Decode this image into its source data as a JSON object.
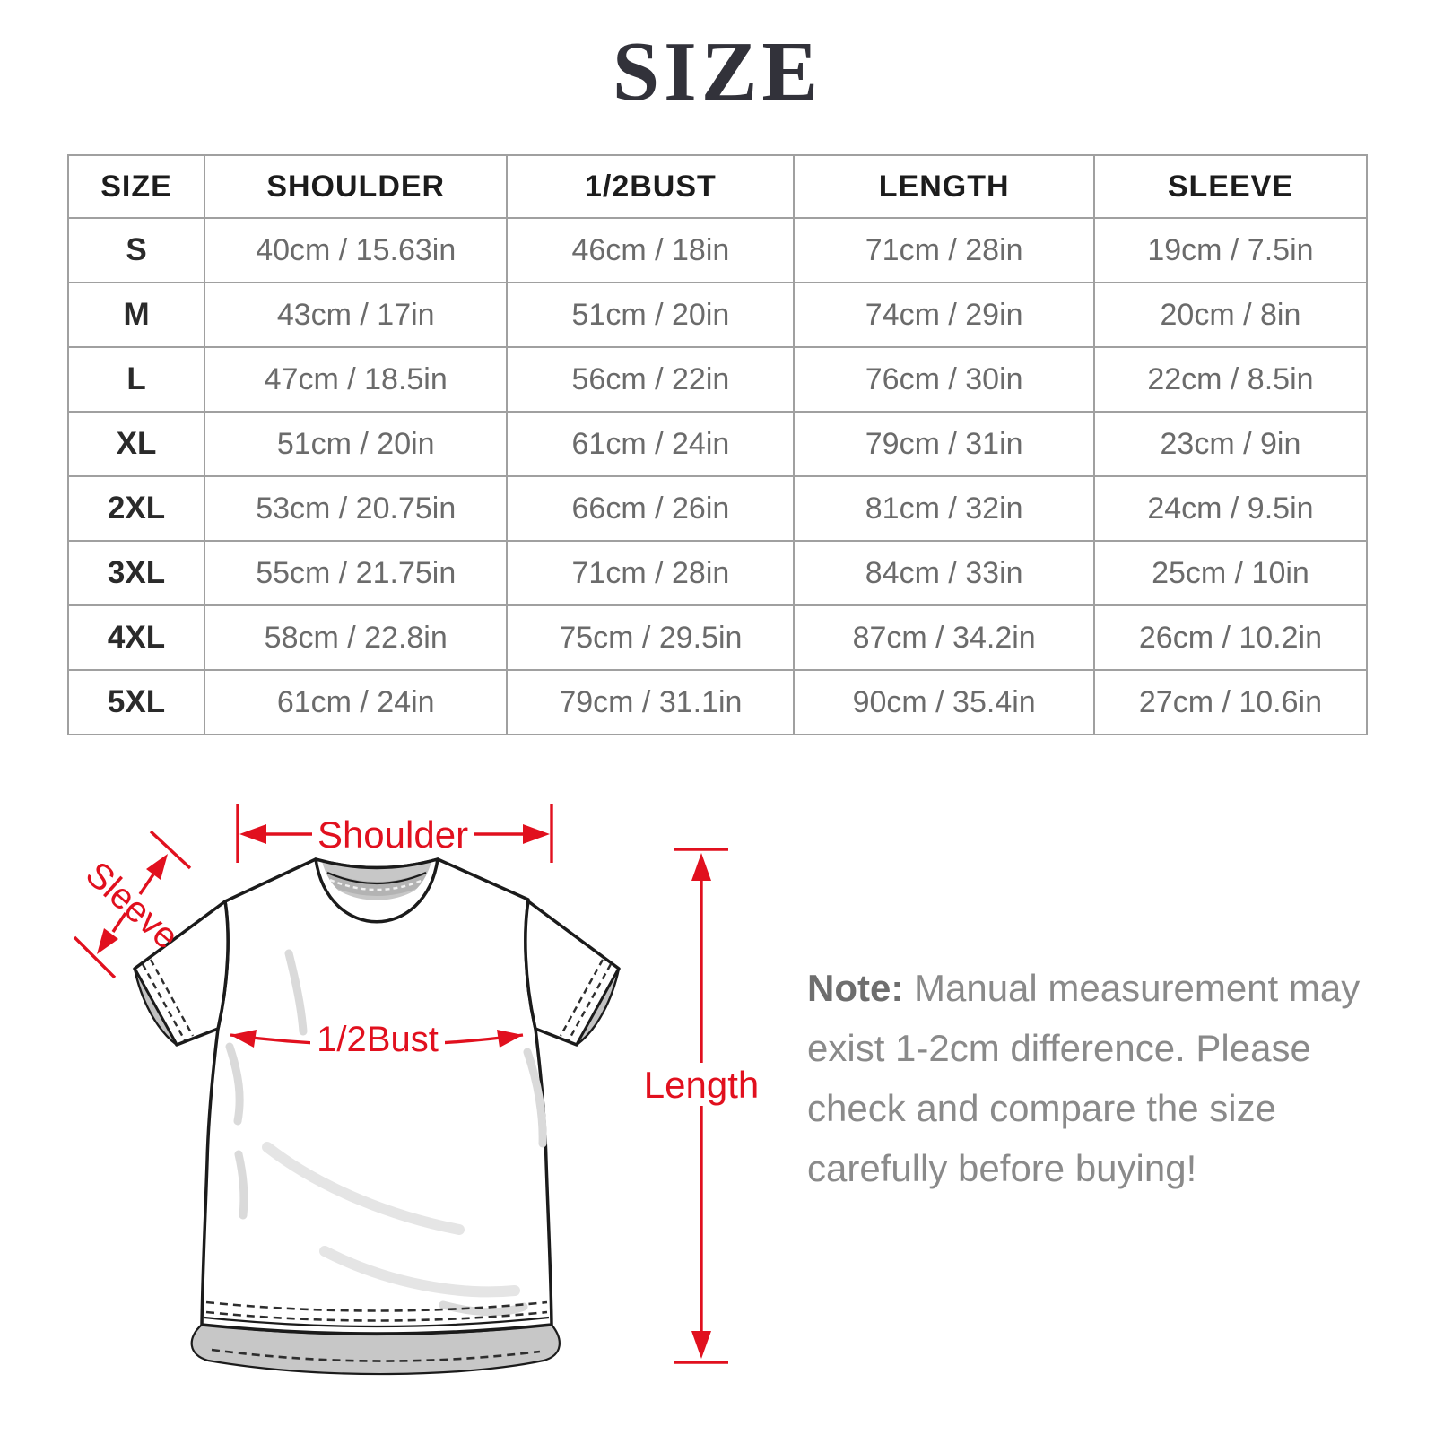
{
  "title": "SIZE",
  "colors": {
    "accent": "#e1101e",
    "title_color": "#32323a",
    "table_border": "#a0a0a0",
    "header_text": "#1c1c1c",
    "value_text": "#6b6b6b",
    "note_text": "#8a8a8a"
  },
  "table": {
    "headers": [
      "SIZE",
      "SHOULDER",
      "1/2BUST",
      "LENGTH",
      "SLEEVE"
    ],
    "rows": [
      {
        "size": "S",
        "cells": [
          "40cm / 15.63in",
          "46cm / 18in",
          "71cm / 28in",
          "19cm / 7.5in"
        ]
      },
      {
        "size": "M",
        "cells": [
          "43cm / 17in",
          "51cm / 20in",
          "74cm / 29in",
          "20cm / 8in"
        ]
      },
      {
        "size": "L",
        "cells": [
          "47cm / 18.5in",
          "56cm / 22in",
          "76cm / 30in",
          "22cm / 8.5in"
        ]
      },
      {
        "size": "XL",
        "cells": [
          "51cm / 20in",
          "61cm / 24in",
          "79cm / 31in",
          "23cm / 9in"
        ]
      },
      {
        "size": "2XL",
        "cells": [
          "53cm / 20.75in",
          "66cm / 26in",
          "81cm / 32in",
          "24cm / 9.5in"
        ]
      },
      {
        "size": "3XL",
        "cells": [
          "55cm / 21.75in",
          "71cm / 28in",
          "84cm / 33in",
          "25cm / 10in"
        ]
      },
      {
        "size": "4XL",
        "cells": [
          "58cm / 22.8in",
          "75cm / 29.5in",
          "87cm / 34.2in",
          "26cm / 10.2in"
        ]
      },
      {
        "size": "5XL",
        "cells": [
          "61cm / 24in",
          "79cm / 31.1in",
          "90cm / 35.4in",
          "27cm / 10.6in"
        ]
      }
    ]
  },
  "diagram": {
    "labels": {
      "shoulder": "Shoulder",
      "sleeve": "Sleeve",
      "bust": "1/2Bust",
      "length": "Length"
    }
  },
  "note": {
    "label": "Note:",
    "text": "Manual measurement may\nexist 1-2cm difference. Please\ncheck and compare the size\ncarefully before buying!"
  }
}
